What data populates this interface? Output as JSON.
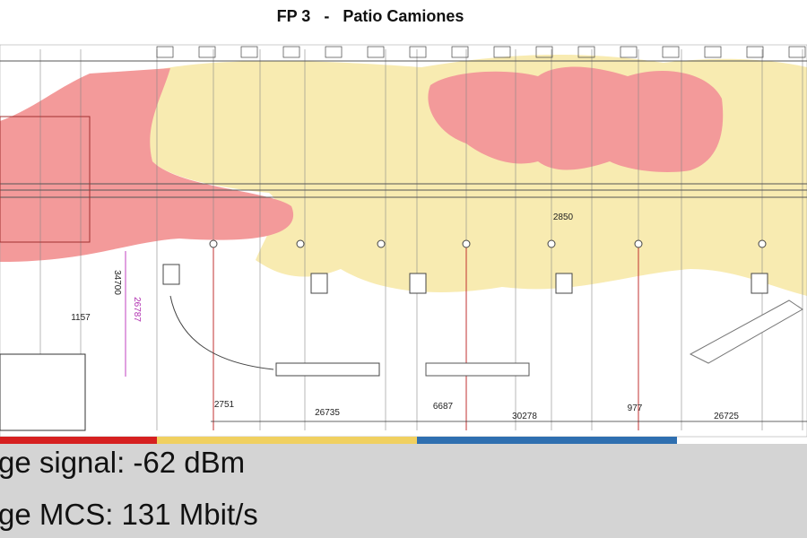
{
  "header": {
    "title": "FP 3   -   Patio Camiones"
  },
  "plan": {
    "dimensions": [
      "2850",
      "1157",
      "34700",
      "26787",
      "2751",
      "26735",
      "6687",
      "30278",
      "977",
      "26725"
    ]
  },
  "stats": {
    "signal": "ge signal: -62 dBm",
    "mcs": "ge MCS: 131 Mbit/s"
  }
}
